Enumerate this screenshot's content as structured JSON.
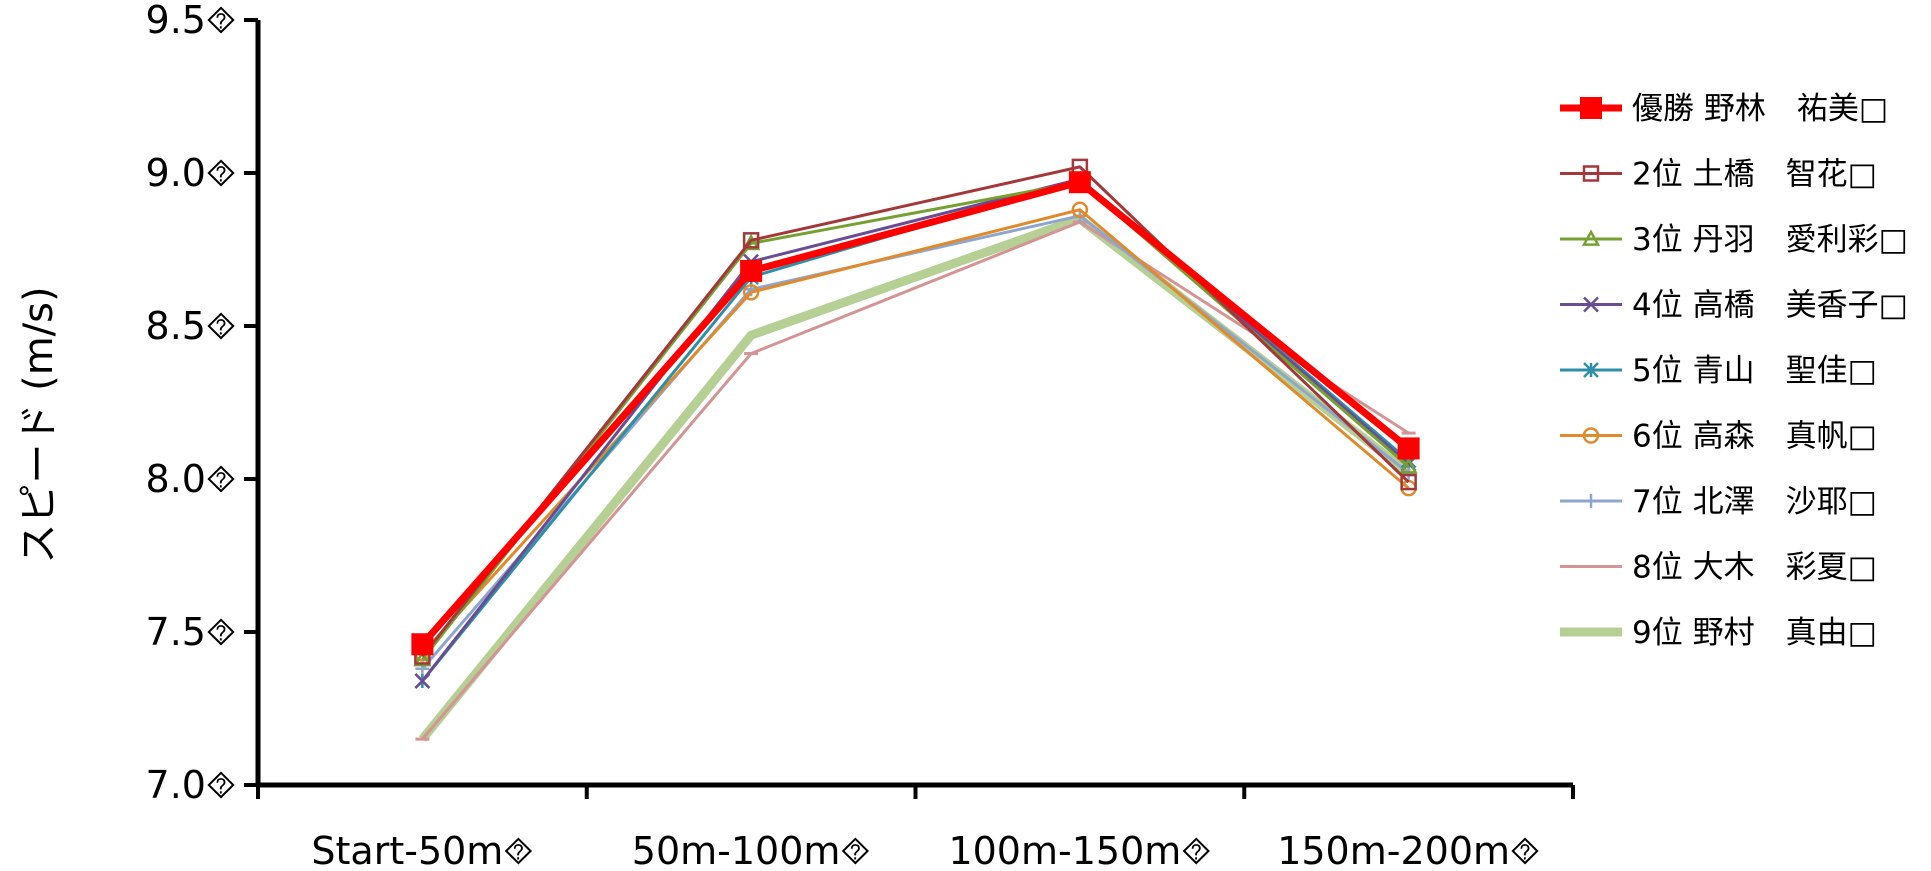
{
  "chart_data": {
    "type": "line",
    "title": "",
    "xlabel": "",
    "ylabel": "スピード (m/s)",
    "categories": [
      "Start-50m",
      "50m-100m",
      "100m-150m",
      "150m-200m"
    ],
    "category_labels": [
      "Start-50m⯑",
      "50m-100m⯑",
      "100m-150m⯑",
      "150m-200m⯑"
    ],
    "ylim": [
      7.0,
      9.5
    ],
    "yticks": [
      7.0,
      7.5,
      8.0,
      8.5,
      9.0,
      9.5
    ],
    "ytick_labels": [
      "7.0⯑",
      "7.5⯑",
      "8.0⯑",
      "8.5⯑",
      "9.0⯑",
      "9.5⯑"
    ],
    "grid": false,
    "legend_position": "right",
    "series": [
      {
        "name": "優勝 野林　祐美□",
        "values": [
          7.46,
          8.68,
          8.97,
          8.1
        ],
        "color": "#ff0000",
        "marker": "square-filled",
        "width": 7
      },
      {
        "name": "2位 土橋　智花□",
        "values": [
          7.42,
          8.78,
          9.02,
          7.99
        ],
        "color": "#a3383a",
        "marker": "square-open",
        "width": 3
      },
      {
        "name": "3位 丹羽　愛利彩□",
        "values": [
          7.41,
          8.77,
          8.97,
          8.04
        ],
        "color": "#77a033",
        "marker": "triangle-open",
        "width": 3
      },
      {
        "name": "4位 高橋　美香子□",
        "values": [
          7.34,
          8.71,
          8.98,
          8.05
        ],
        "color": "#6a4c93",
        "marker": "x",
        "width": 3
      },
      {
        "name": "5位 青山　聖佳□",
        "values": [
          7.34,
          8.66,
          8.98,
          8.06
        ],
        "color": "#2f8fa8",
        "marker": "asterisk",
        "width": 3
      },
      {
        "name": "6位 高森　真帆□",
        "values": [
          7.43,
          8.61,
          8.88,
          7.97
        ],
        "color": "#e08a2e",
        "marker": "circle-open",
        "width": 3
      },
      {
        "name": "7位 北澤　沙耶□",
        "values": [
          7.38,
          8.62,
          8.86,
          8.02
        ],
        "color": "#8fa6cc",
        "marker": "plus",
        "width": 3
      },
      {
        "name": "8位 大木　彩夏□",
        "values": [
          7.15,
          8.41,
          8.84,
          8.15
        ],
        "color": "#d39495",
        "marker": "dash",
        "width": 3
      },
      {
        "name": "9位 野村　真由□",
        "values": [
          7.15,
          8.47,
          8.85,
          8.02
        ],
        "color": "#b5cf95",
        "marker": "none",
        "width": 9
      }
    ]
  }
}
